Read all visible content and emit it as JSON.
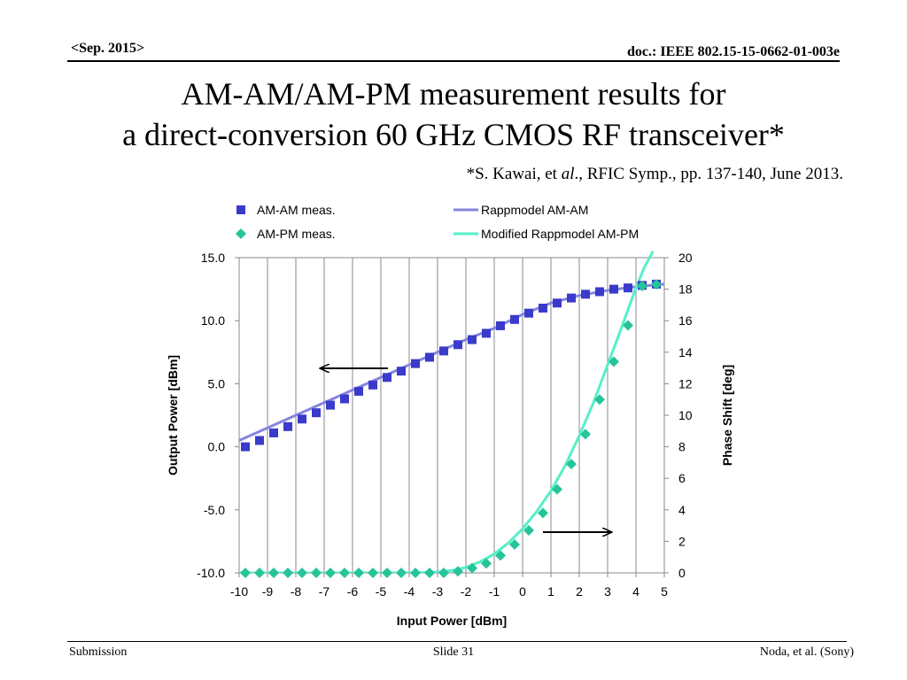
{
  "header": {
    "date": "<Sep. 2015>",
    "doc": "doc.: IEEE 802.15-15-0662-01-003e"
  },
  "title": {
    "line1": "AM-AM/AM-PM measurement results for",
    "line2": "a direct-conversion 60 GHz CMOS RF transceiver*"
  },
  "citation": {
    "prefix": "*S. Kawai, et ",
    "italic": "al",
    "suffix": "., RFIC Symp., pp. 137-140, June 2013."
  },
  "chart_data": {
    "type": "scatter",
    "xlabel": "Input Power [dBm]",
    "ylabel": "Output Power [dBm]",
    "y2label": "Phase Shift [deg]",
    "xlim": [
      -10,
      5
    ],
    "ylim": [
      -10,
      15
    ],
    "y2lim": [
      0,
      20
    ],
    "x_ticks": [
      "-10",
      "-9",
      "-8",
      "-7",
      "-6",
      "-5",
      "-4",
      "-3",
      "-2",
      "-1",
      "0",
      "1",
      "2",
      "3",
      "4",
      "5"
    ],
    "y_ticks": [
      "-10.0",
      "-5.0",
      "0.0",
      "5.0",
      "10.0",
      "15.0"
    ],
    "y2_ticks": [
      "0",
      "2",
      "4",
      "6",
      "8",
      "10",
      "12",
      "14",
      "16",
      "18",
      "20"
    ],
    "grid": "vertical",
    "legend_position": "top",
    "series": [
      {
        "name": "AM-AM meas.",
        "kind": "markers",
        "marker": "square",
        "axis": "left",
        "color": "#3a3acb",
        "x": [
          -10,
          -9.5,
          -9,
          -8.5,
          -8,
          -7.5,
          -7,
          -6.5,
          -6,
          -5.5,
          -5,
          -4.5,
          -4,
          -3.5,
          -3,
          -2.5,
          -2,
          -1.5,
          -1,
          -0.5,
          0,
          0.5,
          1,
          1.5,
          2,
          2.5,
          3,
          3.5,
          4,
          4.5
        ],
        "y": [
          0.0,
          0.5,
          1.1,
          1.6,
          2.2,
          2.7,
          3.3,
          3.8,
          4.4,
          4.9,
          5.5,
          6.0,
          6.6,
          7.1,
          7.6,
          8.1,
          8.5,
          9.0,
          9.6,
          10.1,
          10.6,
          11.0,
          11.4,
          11.8,
          12.1,
          12.3,
          12.5,
          12.6,
          12.8,
          12.9
        ]
      },
      {
        "name": "AM-PM meas.",
        "kind": "markers",
        "marker": "diamond",
        "axis": "right",
        "color": "#27c49a",
        "x": [
          -10,
          -9.5,
          -9,
          -8.5,
          -8,
          -7.5,
          -7,
          -6.5,
          -6,
          -5.5,
          -5,
          -4.5,
          -4,
          -3.5,
          -3,
          -2.5,
          -2,
          -1.5,
          -1,
          -0.5,
          0,
          0.5,
          1,
          1.5,
          2,
          2.5,
          3,
          3.5,
          4,
          4.5
        ],
        "y": [
          0,
          0,
          0,
          0,
          0,
          0,
          0,
          0,
          0,
          0,
          0,
          0,
          0,
          0,
          0,
          0.1,
          0.3,
          0.6,
          1.1,
          1.8,
          2.7,
          3.8,
          5.3,
          6.9,
          8.8,
          11.0,
          13.4,
          15.7,
          18.2,
          18.3
        ]
      },
      {
        "name": "Rappmodel AM-AM",
        "kind": "line",
        "axis": "left",
        "color": "#8585df",
        "x": [
          -10,
          -9,
          -8,
          -7,
          -6,
          -5,
          -4,
          -3,
          -2,
          -1,
          0,
          1,
          2,
          3,
          4,
          5
        ],
        "y": [
          0.5,
          1.5,
          2.5,
          3.5,
          4.5,
          5.5,
          6.5,
          7.5,
          8.5,
          9.4,
          10.5,
          11.4,
          12.0,
          12.4,
          12.7,
          12.9
        ]
      },
      {
        "name": "Modified Rappmodel AM-PM",
        "kind": "line",
        "axis": "right",
        "color": "#55f0c8",
        "x": [
          -10,
          -4,
          -3,
          -2.5,
          -2,
          -1.5,
          -1,
          -0.5,
          0,
          0.5,
          1,
          1.5,
          2,
          2.5,
          3,
          3.5,
          4,
          4.3,
          4.6
        ],
        "y": [
          0,
          0,
          0.05,
          0.15,
          0.35,
          0.7,
          1.2,
          1.9,
          2.8,
          3.9,
          5.2,
          6.8,
          8.7,
          10.8,
          13.2,
          15.6,
          18.1,
          19.4,
          20.4
        ]
      }
    ]
  },
  "footer": {
    "left": "Submission",
    "center": "Slide 31",
    "right": "Noda, et al. (Sony)"
  }
}
